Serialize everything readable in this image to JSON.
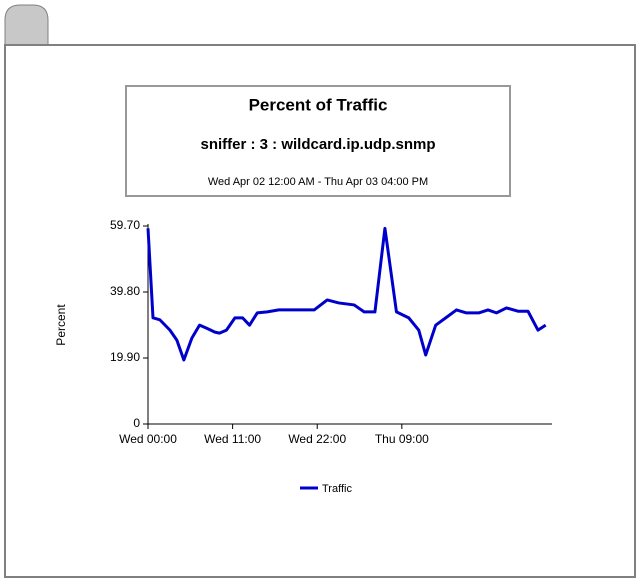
{
  "chart_data": {
    "type": "line",
    "title": "Percent of Traffic",
    "subtitle": "sniffer : 3 : wildcard.ip.udp.snmp",
    "time_range": "Wed Apr 02 12:00 AM - Thu Apr 03 04:00 PM",
    "ylabel": "Percent",
    "xlim": [
      0,
      52
    ],
    "xticks": [
      {
        "value": 0,
        "label": "Wed 00:00"
      },
      {
        "value": 11,
        "label": "Wed 11:00"
      },
      {
        "value": 22,
        "label": "Wed 22:00"
      },
      {
        "value": 33,
        "label": "Thu 09:00"
      }
    ],
    "ylim": [
      0,
      59.7
    ],
    "yticks": [
      0,
      {
        "value": 19.9,
        "label": "19.90"
      },
      {
        "value": 39.8,
        "label": "39.80"
      },
      {
        "value": 59.7,
        "label": "59.70"
      }
    ],
    "x": [
      0,
      0.65,
      1.55,
      2.85,
      3.75,
      4.66,
      5.7,
      6.7,
      7.6,
      8.7,
      9.3,
      10.2,
      11.3,
      12.3,
      13.2,
      14.2,
      15.5,
      17,
      21.6,
      23.3,
      24.8,
      26.8,
      28.1,
      29.5,
      30.8,
      32.3,
      33.9,
      35.2,
      36.1,
      37.4,
      38.7,
      40.1,
      41.4,
      43,
      44.2,
      45.3,
      46.6,
      48.1,
      49.4,
      50.7,
      51.7
    ],
    "series": [
      {
        "name": "Traffic",
        "color": "#0000cc",
        "values": [
          59,
          32,
          31.4,
          28.3,
          25.3,
          19.3,
          25.9,
          29.8,
          28.9,
          27.7,
          27.4,
          28.3,
          32,
          32,
          29.8,
          33.5,
          33.8,
          34.4,
          34.4,
          37.4,
          36.5,
          35.9,
          33.8,
          33.8,
          59,
          33.8,
          32,
          28.3,
          20.8,
          29.8,
          32,
          34.4,
          33.5,
          33.5,
          34.4,
          33.5,
          35,
          34,
          34,
          28.3,
          29.8
        ]
      }
    ]
  }
}
